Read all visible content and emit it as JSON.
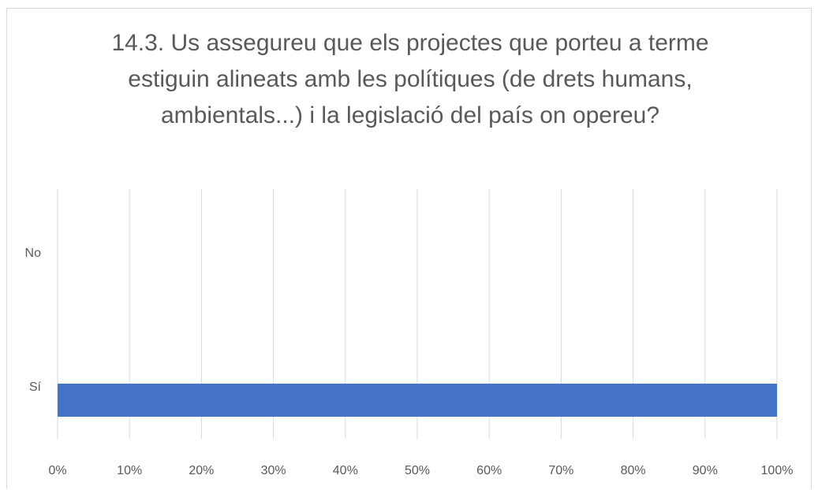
{
  "chart_data": {
    "type": "bar",
    "orientation": "horizontal",
    "title": "14.3. Us assegureu que els projectes que porteu a terme estiguin alineats amb les polítiques (de drets humans, ambientals...) i la legislació del país on opereu?",
    "categories": [
      "No",
      "Sí"
    ],
    "values": [
      0,
      100
    ],
    "color": "#4472c4",
    "xlim": [
      0,
      100
    ],
    "xticks": [
      {
        "value": 0,
        "label": "0%"
      },
      {
        "value": 10,
        "label": "10%"
      },
      {
        "value": 20,
        "label": "20%"
      },
      {
        "value": 30,
        "label": "30%"
      },
      {
        "value": 40,
        "label": "40%"
      },
      {
        "value": 50,
        "label": "50%"
      },
      {
        "value": 60,
        "label": "60%"
      },
      {
        "value": 70,
        "label": "70%"
      },
      {
        "value": 80,
        "label": "80%"
      },
      {
        "value": 90,
        "label": "90%"
      },
      {
        "value": 100,
        "label": "100%"
      }
    ],
    "grid": true
  }
}
